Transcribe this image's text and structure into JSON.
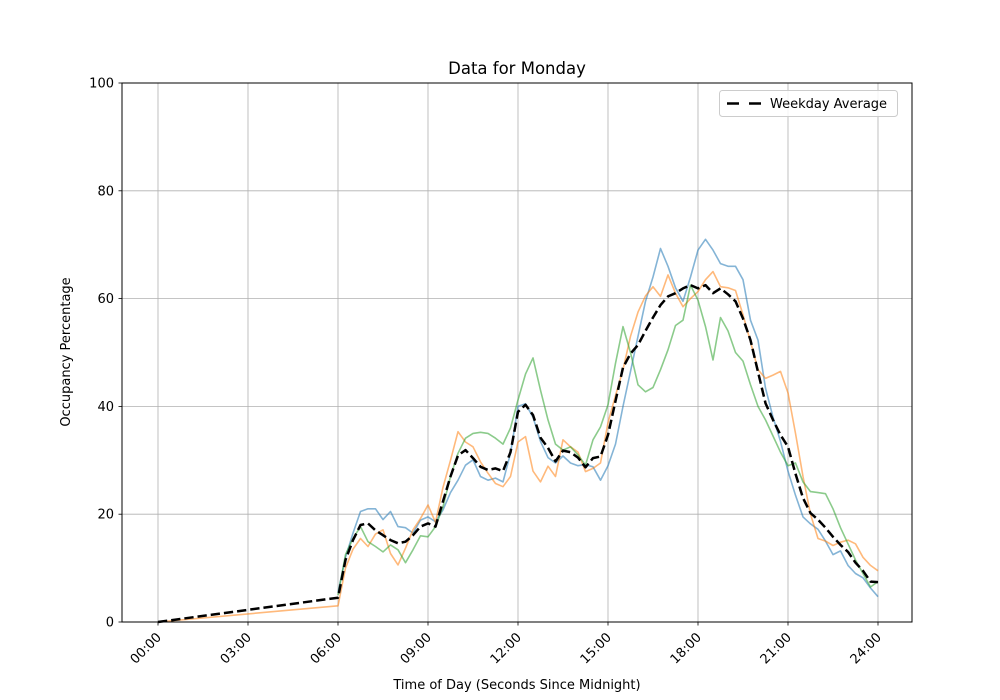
{
  "chart_data": {
    "type": "line",
    "title": "Data for Monday",
    "xlabel": "Time of Day (Seconds Since Midnight)",
    "ylabel": "Occupancy Percentage",
    "xlim_hours": [
      0,
      24
    ],
    "ylim": [
      0,
      100
    ],
    "grid": true,
    "grid_color": "#b0b0b0",
    "x_ticks_hours": [
      0,
      3,
      6,
      9,
      12,
      15,
      18,
      21,
      24
    ],
    "x_tick_labels": [
      "00:00",
      "03:00",
      "06:00",
      "09:00",
      "12:00",
      "15:00",
      "18:00",
      "21:00",
      "24:00"
    ],
    "y_ticks": [
      0,
      20,
      40,
      60,
      80,
      100
    ],
    "y_tick_labels": [
      "0",
      "20",
      "40",
      "60",
      "80",
      "100"
    ],
    "legend": {
      "position": "upper right",
      "entries": [
        "Weekday Average"
      ]
    },
    "series": [
      {
        "name": "day-series-blue",
        "color": "#1f77b4",
        "alpha": 0.55,
        "style": "solid",
        "width": 1.6,
        "x": [
          6,
          6.25,
          6.5,
          6.75,
          7,
          7.25,
          7.5,
          7.75,
          8,
          8.25,
          8.5,
          8.75,
          9,
          9.25,
          9.5,
          9.75,
          10,
          10.25,
          10.5,
          10.75,
          11,
          11.25,
          11.5,
          11.75,
          12,
          12.25,
          12.5,
          12.75,
          13,
          13.25,
          13.5,
          13.75,
          14,
          14.25,
          14.5,
          14.75,
          15,
          15.25,
          15.5,
          15.75,
          16,
          16.25,
          16.5,
          16.75,
          17,
          17.25,
          17.5,
          17.75,
          18,
          18.25,
          18.5,
          18.75,
          19,
          19.25,
          19.5,
          19.75,
          20,
          20.25,
          20.5,
          20.75,
          21,
          21.25,
          21.5,
          21.75,
          22,
          22.25,
          22.5,
          22.75,
          23,
          23.25,
          23.5,
          23.75,
          24
        ],
        "y": [
          5.5,
          12,
          16.5,
          20.5,
          21,
          21,
          19,
          20.5,
          17.7,
          17.5,
          16.5,
          18.9,
          19.5,
          18.6,
          20.8,
          24,
          26.3,
          29.1,
          30.1,
          27,
          26.3,
          26.7,
          26,
          31.3,
          40,
          40.5,
          38,
          33.5,
          30.5,
          29.5,
          30.8,
          29.5,
          29,
          29.2,
          28.8,
          26.3,
          29,
          33,
          40,
          46.5,
          53,
          59.5,
          64,
          69.3,
          66,
          62,
          59.5,
          64,
          69,
          71,
          69,
          66.5,
          66,
          66,
          63.5,
          56,
          52.3,
          43.4,
          38,
          33.5,
          28,
          23.5,
          19.5,
          18.2,
          17.2,
          15,
          12.5,
          13.2,
          10.5,
          9,
          8.2,
          6.3,
          4.7
        ]
      },
      {
        "name": "day-series-orange",
        "color": "#ff7f0e",
        "alpha": 0.55,
        "style": "solid",
        "width": 1.6,
        "x": [
          0,
          6,
          6.25,
          6.5,
          6.75,
          7,
          7.25,
          7.5,
          7.75,
          8,
          8.25,
          8.5,
          8.75,
          9,
          9.25,
          9.5,
          9.75,
          10,
          10.25,
          10.5,
          10.75,
          11,
          11.25,
          11.5,
          11.75,
          12,
          12.25,
          12.5,
          12.75,
          13,
          13.25,
          13.5,
          13.75,
          14,
          14.25,
          14.5,
          14.75,
          15,
          15.25,
          15.5,
          15.75,
          16,
          16.25,
          16.5,
          16.75,
          17,
          17.25,
          17.5,
          17.75,
          18,
          18.25,
          18.5,
          18.75,
          19,
          19.25,
          19.5,
          19.75,
          20,
          20.25,
          20.5,
          20.75,
          21,
          21.25,
          21.5,
          21.75,
          22,
          22.25,
          22.5,
          22.75,
          23,
          23.25,
          23.5,
          23.75,
          24
        ],
        "y": [
          0,
          3,
          10,
          13.5,
          15.5,
          14,
          16.3,
          17.1,
          12.7,
          10.6,
          13.7,
          17.1,
          19.2,
          21.7,
          18.5,
          25,
          30,
          35.3,
          33.4,
          32.5,
          29.7,
          27.6,
          25.7,
          25.1,
          27,
          33.4,
          34.4,
          28,
          26,
          28.9,
          27,
          33.8,
          32.5,
          31.5,
          27.9,
          28.5,
          29.5,
          37,
          42,
          46.8,
          53,
          57.5,
          60.5,
          62.2,
          60.4,
          64.4,
          61,
          58.5,
          60,
          61.3,
          63.5,
          65,
          62.2,
          62,
          61.5,
          57,
          52,
          46.8,
          45.2,
          45.8,
          46.5,
          42.5,
          35,
          27,
          20,
          15.5,
          15,
          14.2,
          14.8,
          15.2,
          14.5,
          12,
          10.5,
          9.5
        ]
      },
      {
        "name": "day-series-green",
        "color": "#2ca02c",
        "alpha": 0.55,
        "style": "solid",
        "width": 1.6,
        "x": [
          6,
          6.25,
          6.5,
          6.75,
          7,
          7.25,
          7.5,
          7.75,
          8,
          8.25,
          8.5,
          8.75,
          9,
          9.25,
          9.5,
          9.75,
          10,
          10.25,
          10.5,
          10.75,
          11,
          11.25,
          11.5,
          11.75,
          12,
          12.25,
          12.5,
          12.75,
          13,
          13.25,
          13.5,
          13.75,
          14,
          14.25,
          14.5,
          14.75,
          15,
          15.25,
          15.5,
          15.75,
          16,
          16.25,
          16.5,
          16.75,
          17,
          17.25,
          17.5,
          17.75,
          18,
          18.25,
          18.5,
          18.75,
          19,
          19.25,
          19.5,
          19.75,
          20,
          20.25,
          20.5,
          20.75,
          21,
          21.25,
          21.5,
          21.75,
          22,
          22.25,
          22.5,
          22.75,
          23,
          23.25,
          23.5,
          23.75,
          24
        ],
        "y": [
          5,
          12.5,
          15.5,
          17.7,
          14.9,
          14,
          13,
          14.3,
          13.4,
          11,
          13.4,
          16,
          15.8,
          17.7,
          21.4,
          27,
          31.3,
          34.1,
          35,
          35.2,
          35,
          34.1,
          33,
          36,
          41.2,
          46,
          49,
          43,
          37.5,
          33,
          31.9,
          32.5,
          31,
          29.1,
          33.8,
          36.2,
          40.3,
          48,
          54.8,
          50,
          44,
          42.7,
          43.5,
          46.8,
          50.5,
          55,
          56,
          62.5,
          59.7,
          54.8,
          48.6,
          56.5,
          54,
          50,
          48.4,
          44,
          40,
          37.5,
          34.5,
          31.5,
          29,
          29.5,
          26,
          24.2,
          24,
          23.8,
          21,
          17.5,
          14.5,
          11.5,
          9,
          6.5,
          7.5
        ]
      },
      {
        "name": "Weekday Average",
        "color": "#000000",
        "alpha": 1,
        "style": "dashed",
        "width": 2.5,
        "in_legend": true,
        "x": [
          0,
          6,
          6.25,
          6.5,
          6.75,
          7,
          7.25,
          7.5,
          7.75,
          8,
          8.25,
          8.5,
          8.75,
          9,
          9.25,
          9.5,
          9.75,
          10,
          10.25,
          10.5,
          10.75,
          11,
          11.25,
          11.5,
          11.75,
          12,
          12.25,
          12.5,
          12.75,
          13,
          13.25,
          13.5,
          13.75,
          14,
          14.25,
          14.5,
          14.75,
          15,
          15.25,
          15.5,
          15.75,
          16,
          16.25,
          16.5,
          16.75,
          17,
          17.25,
          17.5,
          17.75,
          18,
          18.25,
          18.5,
          18.75,
          19,
          19.25,
          19.5,
          19.75,
          20,
          20.25,
          20.5,
          20.75,
          21,
          21.25,
          21.5,
          21.75,
          22,
          22.25,
          22.5,
          22.75,
          23,
          23.25,
          23.5,
          23.75,
          24
        ],
        "y": [
          0,
          4.5,
          11.5,
          15.2,
          18,
          18.3,
          17,
          16.1,
          15.2,
          14.6,
          14.9,
          16.1,
          17.7,
          18.3,
          17.7,
          22.4,
          27,
          30.9,
          31.9,
          30.4,
          28.8,
          28.2,
          28.5,
          28,
          31.5,
          39,
          40.3,
          38.4,
          34.2,
          32.3,
          29.8,
          31.8,
          31.5,
          30.5,
          28.7,
          30.4,
          30.7,
          34.7,
          41,
          47.2,
          49.8,
          51.4,
          54,
          56.5,
          58.8,
          60.4,
          61,
          61.9,
          62.5,
          61.9,
          62.5,
          61,
          61.9,
          60.8,
          59.5,
          56.3,
          52.3,
          46.4,
          40.6,
          37.5,
          34.7,
          32.5,
          27.5,
          23,
          20.2,
          19,
          17.5,
          15.8,
          14.3,
          13,
          11,
          9.5,
          7.5,
          7.4
        ]
      }
    ]
  }
}
